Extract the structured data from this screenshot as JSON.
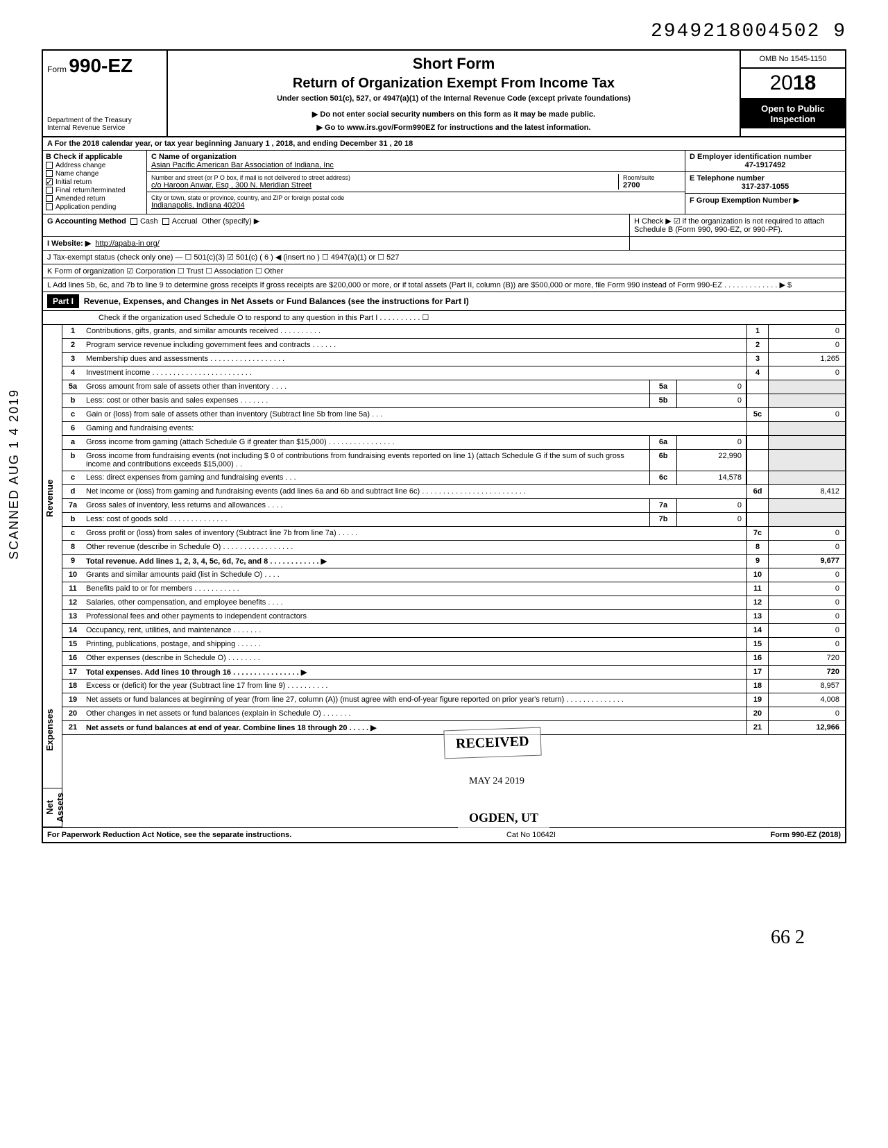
{
  "dln": "2949218004502 9",
  "header": {
    "form_prefix": "Form",
    "form_number": "990-EZ",
    "dept": "Department of the Treasury\nInternal Revenue Service",
    "short_form": "Short Form",
    "title": "Return of Organization Exempt From Income Tax",
    "section": "Under section 501(c), 527, or 4947(a)(1) of the Internal Revenue Code (except private foundations)",
    "notice": "▶ Do not enter social security numbers on this form as it may be made public.",
    "goto": "▶ Go to www.irs.gov/Form990EZ for instructions and the latest information.",
    "omb": "OMB No 1545-1150",
    "year": "2018",
    "open": "Open to Public Inspection"
  },
  "line_a": "A For the 2018 calendar year, or tax year beginning January 1 , 2018, and ending December 31 , 20 18",
  "block_b": {
    "heading": "B Check if applicable",
    "items": [
      {
        "label": "Address change",
        "checked": false
      },
      {
        "label": "Name change",
        "checked": false
      },
      {
        "label": "Initial return",
        "checked": true
      },
      {
        "label": "Final return/terminated",
        "checked": false
      },
      {
        "label": "Amended return",
        "checked": false
      },
      {
        "label": "Application pending",
        "checked": false
      }
    ]
  },
  "block_c": {
    "name_label": "C Name of organization",
    "name": "Asian Pacific American Bar Association of Indiana, Inc",
    "addr_label": "Number and street (or P O box, if mail is not delivered to street address)",
    "addr": "c/o Haroon Anwar, Esq , 300 N. Meridian Street",
    "city_label": "City or town, state or province, country, and ZIP or foreign postal code",
    "city": "Indianapolis, Indiana 40204",
    "room_label": "Room/suite",
    "room": "2700"
  },
  "block_d": {
    "label": "D Employer identification number",
    "value": "47-1917492"
  },
  "block_e": {
    "label": "E Telephone number",
    "value": "317-237-1055"
  },
  "block_f": {
    "label": "F Group Exemption Number ▶",
    "value": ""
  },
  "block_g": {
    "label": "G Accounting Method",
    "cash": "Cash",
    "accrual": "Accrual",
    "other": "Other (specify) ▶"
  },
  "block_h": "H Check ▶ ☑ if the organization is not required to attach Schedule B (Form 990, 990-EZ, or 990-PF).",
  "block_i": {
    "label": "I Website: ▶",
    "value": "http://apaba-in org/"
  },
  "block_j": "J Tax-exempt status (check only one) — ☐ 501(c)(3)  ☑ 501(c) ( 6 ) ◀ (insert no ) ☐ 4947(a)(1) or ☐ 527",
  "block_k": "K Form of organization  ☑ Corporation  ☐ Trust  ☐ Association  ☐ Other",
  "block_l": "L Add lines 5b, 6c, and 7b to line 9 to determine gross receipts If gross receipts are $200,000 or more, or if total assets (Part II, column (B)) are $500,000 or more, file Form 990 instead of Form 990-EZ  . . . . . . . . . . . . . ▶  $",
  "part1": {
    "label": "Part I",
    "title": "Revenue, Expenses, and Changes in Net Assets or Fund Balances (see the instructions for Part I)",
    "scho": "Check if the organization used Schedule O to respond to any question in this Part I . . . . . . . . . . ☐"
  },
  "sections": {
    "revenue": "Revenue",
    "expenses": "Expenses",
    "netassets": "Net Assets"
  },
  "lines": [
    {
      "n": "1",
      "desc": "Contributions, gifts, grants, and similar amounts received . . . . . . . . . .",
      "rn": "1",
      "rv": "0"
    },
    {
      "n": "2",
      "desc": "Program service revenue including government fees and contracts . . . . . .",
      "rn": "2",
      "rv": "0"
    },
    {
      "n": "3",
      "desc": "Membership dues and assessments . . . . . . . . . . . . . . . . . .",
      "rn": "3",
      "rv": "1,265"
    },
    {
      "n": "4",
      "desc": "Investment income . . . . . . . . . . . . . . . . . . . . . . . .",
      "rn": "4",
      "rv": "0"
    },
    {
      "n": "5a",
      "desc": "Gross amount from sale of assets other than inventory . . . .",
      "mini": "5a",
      "miniv": "0"
    },
    {
      "n": "b",
      "desc": "Less: cost or other basis and sales expenses . . . . . . .",
      "mini": "5b",
      "miniv": "0"
    },
    {
      "n": "c",
      "desc": "Gain or (loss) from sale of assets other than inventory (Subtract line 5b from line 5a) . . .",
      "rn": "5c",
      "rv": "0"
    },
    {
      "n": "6",
      "desc": "Gaming and fundraising events:"
    },
    {
      "n": "a",
      "desc": "Gross income from gaming (attach Schedule G if greater than $15,000) . . . . . . . . . . . . . . . .",
      "mini": "6a",
      "miniv": "0"
    },
    {
      "n": "b",
      "desc": "Gross income from fundraising events (not including $          0 of contributions from fundraising events reported on line 1) (attach Schedule G if the sum of such gross income and contributions exceeds $15,000) . .",
      "mini": "6b",
      "miniv": "22,990"
    },
    {
      "n": "c",
      "desc": "Less: direct expenses from gaming and fundraising events . . .",
      "mini": "6c",
      "miniv": "14,578"
    },
    {
      "n": "d",
      "desc": "Net income or (loss) from gaming and fundraising events (add lines 6a and 6b and subtract line 6c) . . . . . . . . . . . . . . . . . . . . . . . . .",
      "rn": "6d",
      "rv": "8,412"
    },
    {
      "n": "7a",
      "desc": "Gross sales of inventory, less returns and allowances . . . .",
      "mini": "7a",
      "miniv": "0"
    },
    {
      "n": "b",
      "desc": "Less: cost of goods sold . . . . . . . . . . . . . .",
      "mini": "7b",
      "miniv": "0"
    },
    {
      "n": "c",
      "desc": "Gross profit or (loss) from sales of inventory (Subtract line 7b from line 7a) . . . . .",
      "rn": "7c",
      "rv": "0"
    },
    {
      "n": "8",
      "desc": "Other revenue (describe in Schedule O) . . . . . . . . . . . . . . . . .",
      "rn": "8",
      "rv": "0"
    },
    {
      "n": "9",
      "desc": "Total revenue. Add lines 1, 2, 3, 4, 5c, 6d, 7c, and 8 . . . . . . . . . . . . ▶",
      "rn": "9",
      "rv": "9,677",
      "bold": true
    },
    {
      "n": "10",
      "desc": "Grants and similar amounts paid (list in Schedule O) . . . .",
      "rn": "10",
      "rv": "0"
    },
    {
      "n": "11",
      "desc": "Benefits paid to or for members . . . . . . . . . . .",
      "rn": "11",
      "rv": "0"
    },
    {
      "n": "12",
      "desc": "Salaries, other compensation, and employee benefits . . . .",
      "rn": "12",
      "rv": "0"
    },
    {
      "n": "13",
      "desc": "Professional fees and other payments to independent contractors",
      "rn": "13",
      "rv": "0"
    },
    {
      "n": "14",
      "desc": "Occupancy, rent, utilities, and maintenance . . . . . . .",
      "rn": "14",
      "rv": "0"
    },
    {
      "n": "15",
      "desc": "Printing, publications, postage, and shipping . . . . . .",
      "rn": "15",
      "rv": "0"
    },
    {
      "n": "16",
      "desc": "Other expenses (describe in Schedule O) . . . . . . . .",
      "rn": "16",
      "rv": "720"
    },
    {
      "n": "17",
      "desc": "Total expenses. Add lines 10 through 16 . . . . . . . . . . . . . . . . ▶",
      "rn": "17",
      "rv": "720",
      "bold": true
    },
    {
      "n": "18",
      "desc": "Excess or (deficit) for the year (Subtract line 17 from line 9) . . . . . . . . . .",
      "rn": "18",
      "rv": "8,957"
    },
    {
      "n": "19",
      "desc": "Net assets or fund balances at beginning of year (from line 27, column (A)) (must agree with end-of-year figure reported on prior year's return) . . . . . . . . . . . . . .",
      "rn": "19",
      "rv": "4,008"
    },
    {
      "n": "20",
      "desc": "Other changes in net assets or fund balances (explain in Schedule O) . . . . . . .",
      "rn": "20",
      "rv": "0"
    },
    {
      "n": "21",
      "desc": "Net assets or fund balances at end of year. Combine lines 18 through 20 . . . . . ▶",
      "rn": "21",
      "rv": "12,966",
      "bold": true
    }
  ],
  "footer": {
    "pra": "For Paperwork Reduction Act Notice, see the separate instructions.",
    "cat": "Cat No 10642I",
    "form": "Form 990-EZ (2018)"
  },
  "scanned": "SCANNED AUG 1 4 2019",
  "stamp": {
    "received": "RECEIVED",
    "date": "MAY 24 2019",
    "ogden": "OGDEN, UT"
  },
  "signature": "66   2"
}
